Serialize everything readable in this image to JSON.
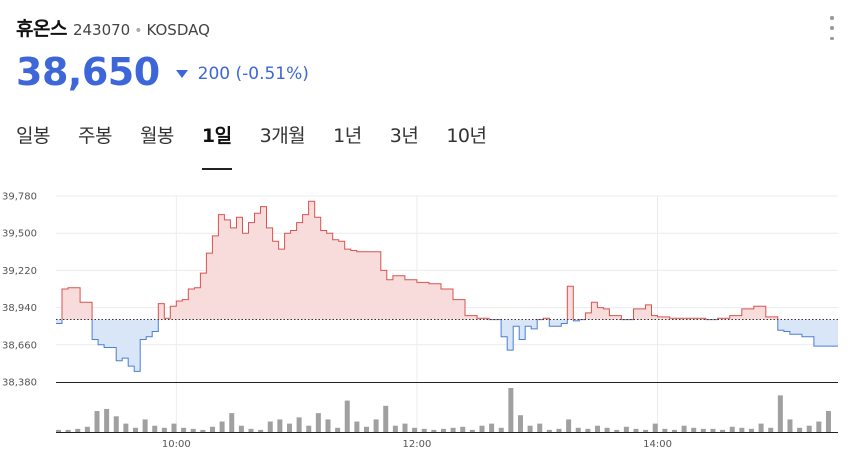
{
  "header": {
    "name": "휴온스",
    "code": "243070",
    "separator": "•",
    "market": "KOSDAQ"
  },
  "quote": {
    "price": "38,650",
    "change": "200 (-0.51%)",
    "direction": "down",
    "color": "#3d66d8"
  },
  "tabs": [
    {
      "label": "일봉",
      "active": false
    },
    {
      "label": "주봉",
      "active": false
    },
    {
      "label": "월봉",
      "active": false
    },
    {
      "label": "1일",
      "active": true
    },
    {
      "label": "3개월",
      "active": false
    },
    {
      "label": "1년",
      "active": false
    },
    {
      "label": "3년",
      "active": false
    },
    {
      "label": "10년",
      "active": false
    }
  ],
  "chart_data": {
    "type": "area",
    "baseline": 38850,
    "ylim": [
      38380,
      39780
    ],
    "yticks": [
      {
        "value": 39780,
        "label": "39,780"
      },
      {
        "value": 39500,
        "label": "39,500"
      },
      {
        "value": 39220,
        "label": "39,220"
      },
      {
        "value": 38940,
        "label": "38,940"
      },
      {
        "value": 38660,
        "label": "38,660"
      },
      {
        "value": 38380,
        "label": "38,380"
      }
    ],
    "xlim": [
      9.0,
      15.5
    ],
    "xticks": [
      {
        "value": 10,
        "label": "10:00"
      },
      {
        "value": 12,
        "label": "12:00"
      },
      {
        "value": 14,
        "label": "14:00"
      }
    ],
    "up_color": "#d9534f",
    "down_color": "#4a7fd6",
    "price": {
      "x": [
        9.0,
        9.05,
        9.1,
        9.2,
        9.3,
        9.35,
        9.4,
        9.5,
        9.55,
        9.6,
        9.65,
        9.7,
        9.75,
        9.8,
        9.85,
        9.9,
        9.95,
        10.0,
        10.05,
        10.1,
        10.15,
        10.2,
        10.25,
        10.3,
        10.35,
        10.4,
        10.45,
        10.5,
        10.55,
        10.6,
        10.65,
        10.7,
        10.75,
        10.8,
        10.85,
        10.9,
        10.95,
        11.0,
        11.05,
        11.1,
        11.15,
        11.2,
        11.25,
        11.3,
        11.35,
        11.4,
        11.45,
        11.5,
        11.6,
        11.7,
        11.75,
        11.8,
        11.9,
        12.0,
        12.1,
        12.2,
        12.3,
        12.4,
        12.5,
        12.6,
        12.7,
        12.75,
        12.8,
        12.85,
        12.9,
        12.95,
        13.0,
        13.05,
        13.1,
        13.2,
        13.25,
        13.3,
        13.35,
        13.4,
        13.45,
        13.5,
        13.55,
        13.6,
        13.7,
        13.8,
        13.9,
        13.95,
        14.0,
        14.1,
        14.2,
        14.3,
        14.4,
        14.5,
        14.6,
        14.7,
        14.8,
        14.9,
        15.0,
        15.05,
        15.1,
        15.2,
        15.3,
        15.5
      ],
      "y": [
        38820,
        39080,
        39090,
        38980,
        38700,
        38660,
        38640,
        38540,
        38560,
        38500,
        38460,
        38700,
        38720,
        38760,
        38970,
        38860,
        38950,
        38990,
        39000,
        39080,
        39090,
        39200,
        39350,
        39480,
        39640,
        39600,
        39540,
        39620,
        39500,
        39580,
        39650,
        39700,
        39540,
        39440,
        39380,
        39500,
        39520,
        39580,
        39640,
        39740,
        39620,
        39520,
        39500,
        39450,
        39440,
        39380,
        39370,
        39360,
        39360,
        39220,
        39150,
        39180,
        39150,
        39130,
        39120,
        39080,
        39000,
        38880,
        38860,
        38850,
        38720,
        38620,
        38800,
        38700,
        38800,
        38780,
        38850,
        38860,
        38800,
        38820,
        39100,
        38840,
        38850,
        38900,
        38980,
        38940,
        38930,
        38880,
        38850,
        38930,
        38960,
        38880,
        38870,
        38860,
        38860,
        38860,
        38850,
        38860,
        38880,
        38930,
        38950,
        38870,
        38770,
        38760,
        38740,
        38720,
        38650,
        38650
      ]
    },
    "volume": {
      "x": [
        9.0,
        9.08,
        9.16,
        9.24,
        9.32,
        9.4,
        9.48,
        9.56,
        9.64,
        9.72,
        9.8,
        9.88,
        9.96,
        10.04,
        10.12,
        10.2,
        10.28,
        10.36,
        10.44,
        10.52,
        10.6,
        10.68,
        10.76,
        10.84,
        10.92,
        11.0,
        11.08,
        11.16,
        11.24,
        11.32,
        11.4,
        11.48,
        11.56,
        11.64,
        11.72,
        11.8,
        11.88,
        11.96,
        12.04,
        12.12,
        12.2,
        12.28,
        12.36,
        12.44,
        12.52,
        12.6,
        12.68,
        12.76,
        12.84,
        12.92,
        13.0,
        13.08,
        13.16,
        13.24,
        13.32,
        13.4,
        13.48,
        13.56,
        13.64,
        13.72,
        13.8,
        13.88,
        13.96,
        14.04,
        14.12,
        14.2,
        14.28,
        14.36,
        14.44,
        14.52,
        14.6,
        14.68,
        14.76,
        14.84,
        14.92,
        15.0,
        15.08,
        15.16,
        15.24,
        15.32,
        15.4
      ],
      "y": [
        2,
        2,
        3,
        5,
        20,
        22,
        15,
        8,
        4,
        12,
        6,
        4,
        8,
        4,
        3,
        2,
        5,
        10,
        18,
        6,
        3,
        2,
        10,
        12,
        8,
        14,
        6,
        18,
        12,
        4,
        30,
        10,
        5,
        12,
        25,
        6,
        8,
        4,
        3,
        2,
        3,
        4,
        5,
        2,
        6,
        8,
        4,
        42,
        16,
        6,
        8,
        2,
        3,
        12,
        4,
        3,
        6,
        4,
        2,
        5,
        3,
        2,
        8,
        3,
        2,
        6,
        4,
        3,
        3,
        2,
        5,
        4,
        3,
        8,
        4,
        35,
        12,
        4,
        6,
        10,
        20
      ]
    }
  }
}
